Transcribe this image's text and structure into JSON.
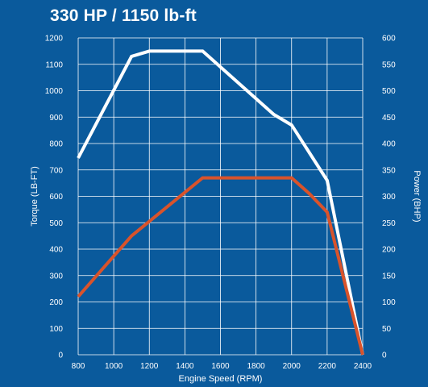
{
  "chart_data": {
    "type": "line",
    "title": "330 HP / 1150 lb-ft",
    "xlabel": "Engine Speed (RPM)",
    "ylabel_left": "Torque (LB-FT)",
    "ylabel_right": "Power (BHP)",
    "x_ticks": [
      "800",
      "1000",
      "1200",
      "1400",
      "1600",
      "1800",
      "2000",
      "2200",
      "2400"
    ],
    "y_left_ticks": [
      "0",
      "100",
      "200",
      "300",
      "400",
      "500",
      "600",
      "700",
      "800",
      "900",
      "1000",
      "1100",
      "1200"
    ],
    "y_right_ticks": [
      "0",
      "50",
      "100",
      "150",
      "200",
      "250",
      "300",
      "350",
      "400",
      "450",
      "500",
      "550",
      "600"
    ],
    "xlim": [
      800,
      2400
    ],
    "ylim_left": [
      0,
      1200
    ],
    "ylim_right": [
      0,
      600
    ],
    "grid": true,
    "series": [
      {
        "axis": "left",
        "color": "#ffffff",
        "x": [
          800,
          1100,
          1200,
          1500,
          1900,
          2000,
          2200,
          2400
        ],
        "y": [
          745,
          1130,
          1150,
          1150,
          910,
          870,
          660,
          0
        ]
      },
      {
        "axis": "right",
        "color": "#d9532b",
        "x": [
          800,
          1100,
          1500,
          2000,
          2100,
          2200,
          2400
        ],
        "y": [
          110,
          225,
          335,
          335,
          305,
          270,
          0
        ]
      }
    ]
  },
  "colors": {
    "background": "#0a5a9c",
    "grid": "#ffffff"
  }
}
